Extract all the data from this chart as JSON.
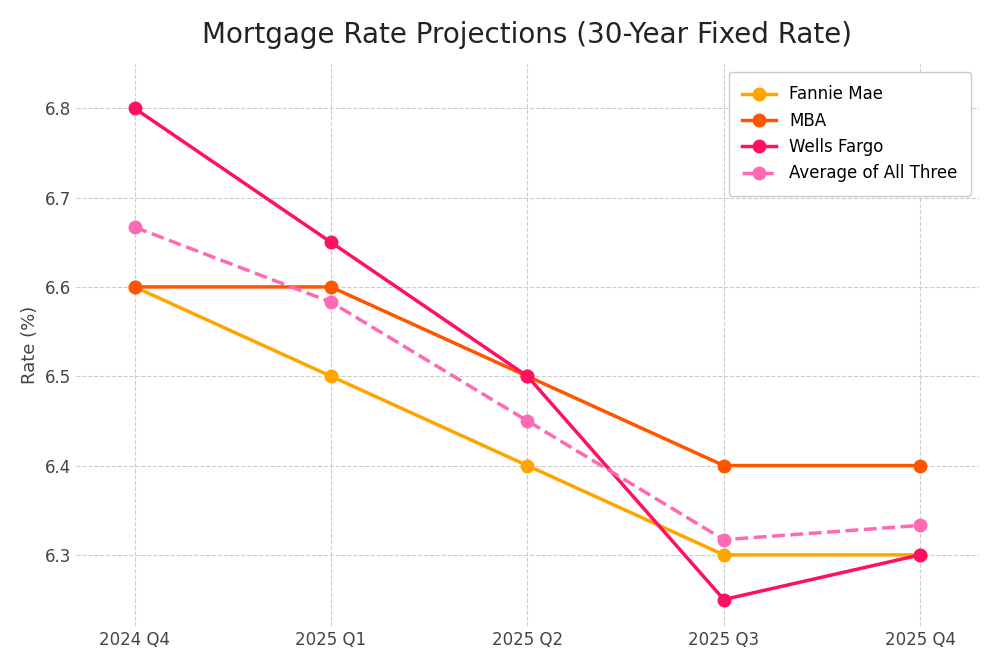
{
  "title": "Mortgage Rate Projections (30-Year Fixed Rate)",
  "xlabel": "",
  "ylabel": "Rate (%)",
  "quarters": [
    "2024 Q4",
    "2025 Q1",
    "2025 Q2",
    "2025 Q3",
    "2025 Q4"
  ],
  "fannie_mae": [
    6.6,
    6.5,
    6.4,
    6.3,
    6.3
  ],
  "mba": [
    6.6,
    6.6,
    6.5,
    6.4,
    6.4
  ],
  "wells_fargo": [
    6.8,
    6.65,
    6.5,
    6.25,
    6.3
  ],
  "average": [
    6.667,
    6.583,
    6.45,
    6.317,
    6.333
  ],
  "fannie_color": "#FFA500",
  "mba_color": "#FF5500",
  "wells_color": "#FF1060",
  "avg_color": "#FF69B4",
  "ylim_min": 6.22,
  "ylim_max": 6.85,
  "title_fontsize": 20,
  "axis_label_fontsize": 13,
  "tick_fontsize": 12,
  "legend_fontsize": 12,
  "linewidth": 2.5,
  "markersize": 9,
  "background_color": "#FFFFFF",
  "grid_color": "#CCCCCC"
}
